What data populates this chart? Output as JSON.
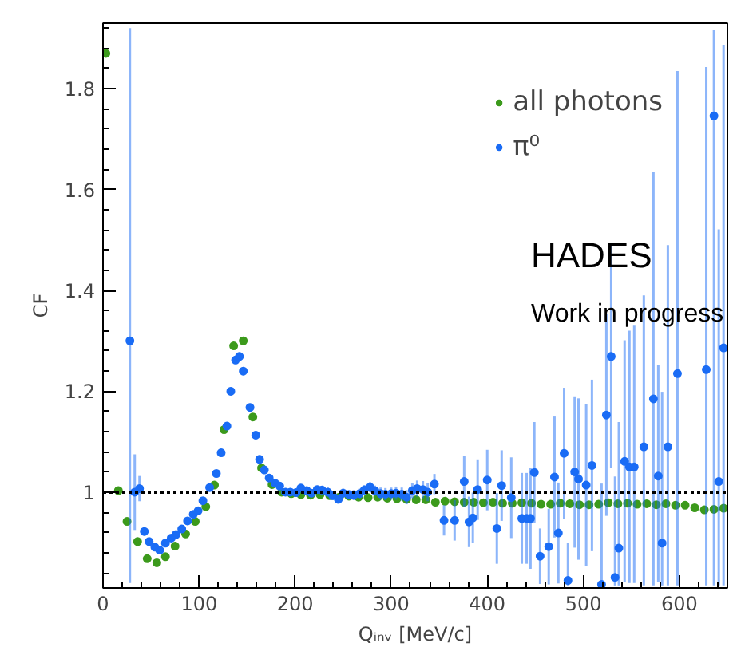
{
  "chart_data": {
    "type": "scatter",
    "xlabel": "Qᵢₙᵥ [MeV/c]",
    "ylabel": "CF",
    "xlim": [
      0,
      650
    ],
    "ylim": [
      0.81,
      1.93
    ],
    "xticks": [
      0,
      100,
      200,
      300,
      400,
      500,
      600
    ],
    "yticks": [
      1,
      1.2,
      1.4,
      1.6,
      1.8
    ],
    "grid": false,
    "legend": "top right",
    "marker": "circle",
    "ref_lines": [
      {
        "axis": "y",
        "value": 1,
        "color": "#000000",
        "line_style": "dotted"
      }
    ],
    "annotations": [
      "HADES",
      "Work in progress"
    ],
    "series": [
      {
        "name": "all photons",
        "color": "#3c9a1c",
        "x": [
          3,
          16,
          25,
          36,
          46,
          56,
          65,
          75,
          86,
          96,
          107,
          116,
          126,
          136,
          146,
          156,
          165,
          176,
          186,
          196,
          206,
          216,
          226,
          236,
          246,
          256,
          266,
          276,
          286,
          296,
          306,
          316,
          326,
          336,
          346,
          356,
          366,
          376,
          386,
          396,
          406,
          416,
          426,
          436,
          446,
          456,
          466,
          476,
          486,
          496,
          506,
          516,
          526,
          536,
          546,
          556,
          566,
          576,
          586,
          596,
          606,
          616,
          626,
          636,
          646
        ],
        "values": [
          1.87,
          1.003,
          0.942,
          0.902,
          0.868,
          0.86,
          0.872,
          0.893,
          0.917,
          0.942,
          0.971,
          1.014,
          1.124,
          1.29,
          1.3,
          1.149,
          1.048,
          1.015,
          1.0,
          0.997,
          0.995,
          0.994,
          0.995,
          0.993,
          0.99,
          0.992,
          0.99,
          0.989,
          0.99,
          0.988,
          0.987,
          0.986,
          0.985,
          0.985,
          0.98,
          0.982,
          0.981,
          0.98,
          0.98,
          0.979,
          0.98,
          0.978,
          0.978,
          0.979,
          0.978,
          0.976,
          0.976,
          0.978,
          0.977,
          0.975,
          0.975,
          0.976,
          0.979,
          0.977,
          0.978,
          0.976,
          0.977,
          0.975,
          0.977,
          0.974,
          0.974,
          0.969,
          0.965,
          0.966,
          0.968
        ]
      },
      {
        "name": "π⁰",
        "color": "#1a6cf5",
        "x": [
          28,
          33,
          38,
          43,
          48,
          54,
          59,
          65,
          71,
          76,
          82,
          88,
          94,
          99,
          104,
          111,
          118,
          123,
          129,
          133,
          138,
          142,
          146,
          153,
          159,
          163,
          168,
          173,
          179,
          184,
          190,
          195,
          201,
          206,
          212,
          217,
          223,
          228,
          234,
          239,
          245,
          250,
          256,
          261,
          267,
          272,
          278,
          283,
          289,
          294,
          300,
          305,
          311,
          316,
          322,
          327,
          333,
          338,
          345,
          355,
          366,
          376,
          381,
          385,
          390,
          400,
          410,
          415,
          425,
          436,
          441,
          445,
          449,
          455,
          464,
          470,
          474,
          480,
          484,
          491,
          495,
          503,
          509,
          519,
          524,
          529,
          533,
          537,
          543,
          548,
          553,
          563,
          573,
          578,
          582,
          588,
          598,
          628,
          636,
          641,
          646
        ],
        "values": [
          1.3,
          1.0,
          1.007,
          0.922,
          0.902,
          0.891,
          0.885,
          0.899,
          0.909,
          0.916,
          0.927,
          0.943,
          0.956,
          0.963,
          0.983,
          1.009,
          1.037,
          1.078,
          1.131,
          1.2,
          1.262,
          1.269,
          1.24,
          1.168,
          1.113,
          1.065,
          1.044,
          1.028,
          1.018,
          1.012,
          1.0,
          1.0,
          0.999,
          1.008,
          1.003,
          0.998,
          1.005,
          1.004,
          1.0,
          0.993,
          0.986,
          0.998,
          0.995,
          0.994,
          0.997,
          1.004,
          1.01,
          1.003,
          0.997,
          0.996,
          0.997,
          0.998,
          0.996,
          0.99,
          1.003,
          1.007,
          1.005,
          1.0,
          1.016,
          0.944,
          0.944,
          1.021,
          0.941,
          0.949,
          1.005,
          1.024,
          0.928,
          1.013,
          0.989,
          0.948,
          0.948,
          0.948,
          1.039,
          0.873,
          0.892,
          1.03,
          0.919,
          1.077,
          0.825,
          1.04,
          1.026,
          1.014,
          1.053,
          0.817,
          1.153,
          1.269,
          0.831,
          0.889,
          1.061,
          1.05,
          1.05,
          1.09,
          1.185,
          1.032,
          0.899,
          1.09,
          1.235,
          1.243,
          1.746,
          1.021,
          1.286
        ],
        "errors": [
          [
            0.82,
            1.92
          ],
          0.075,
          0.025,
          0.008,
          0.007,
          0.007,
          0.007,
          0.007,
          0.007,
          0.007,
          0.007,
          0.007,
          0.007,
          0.007,
          0.007,
          0.007,
          0.007,
          0.008,
          0.008,
          0.008,
          0.008,
          0.008,
          0.008,
          0.008,
          0.008,
          0.008,
          0.008,
          0.008,
          0.008,
          0.008,
          0.008,
          0.008,
          0.008,
          0.008,
          0.008,
          0.008,
          0.008,
          0.008,
          0.009,
          0.009,
          0.009,
          0.009,
          0.009,
          0.01,
          0.01,
          0.01,
          0.01,
          0.01,
          0.012,
          0.012,
          0.012,
          0.013,
          0.013,
          0.014,
          0.015,
          0.016,
          0.017,
          0.018,
          0.02,
          0.03,
          0.04,
          0.05,
          0.05,
          0.05,
          0.06,
          0.06,
          0.07,
          0.07,
          0.08,
          0.09,
          0.09,
          0.1,
          0.1,
          0.055,
          0.075,
          0.12,
          0.1,
          0.13,
          [
            0.815,
            0.9
          ],
          0.15,
          0.16,
          0.16,
          0.17,
          [
            0.815,
            1.017
          ],
          0.2,
          0.22,
          [
            0.815,
            1.031
          ],
          [
            0.815,
            1.139
          ],
          0.24,
          [
            0.82,
            1.32
          ],
          [
            0.82,
            1.33
          ],
          [
            0.815,
            1.39
          ],
          [
            0.815,
            1.635
          ],
          [
            0.822,
            1.252
          ],
          [
            0.815,
            1.199
          ],
          [
            0.815,
            1.49
          ],
          [
            0.815,
            1.835
          ],
          [
            0.815,
            1.843
          ],
          [
            0.815,
            1.916
          ],
          [
            0.815,
            1.521
          ],
          [
            0.815,
            1.886
          ]
        ]
      }
    ]
  }
}
